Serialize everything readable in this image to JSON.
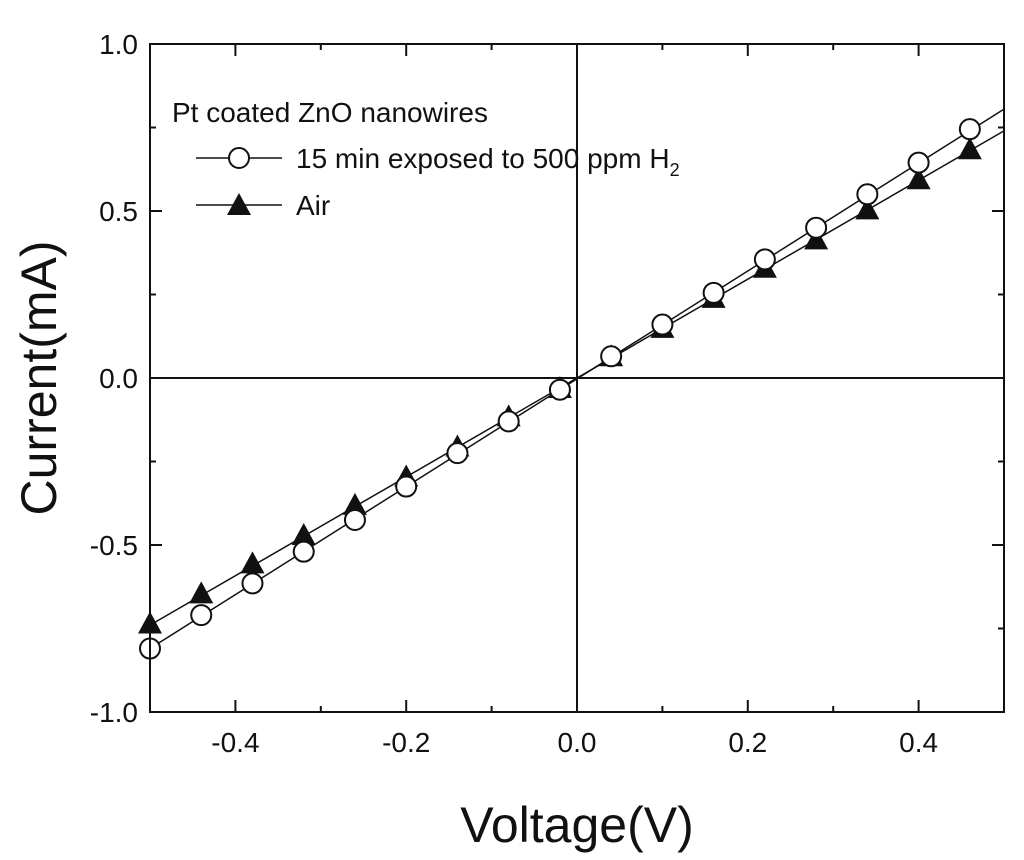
{
  "chart_data": {
    "type": "line",
    "title": "",
    "xlabel": "Voltage(V)",
    "ylabel": "Current(mA)",
    "xlim": [
      -0.5,
      0.5
    ],
    "ylim": [
      -1.0,
      1.0
    ],
    "xticks": [
      -0.4,
      -0.2,
      0.0,
      0.2,
      0.4
    ],
    "xtick_labels": [
      "-0.4",
      "-0.2",
      "0.0",
      "0.2",
      "0.4"
    ],
    "yticks": [
      -1.0,
      -0.5,
      0.0,
      0.5,
      1.0
    ],
    "ytick_labels": [
      "-1.0",
      "-0.5",
      "0.0",
      "0.5",
      "1.0"
    ],
    "grid": false,
    "legend_position": "top-left",
    "legend_title": "Pt coated ZnO nanowires",
    "series": [
      {
        "name": "15 min exposed to 500 ppm H",
        "name_subscript": "2",
        "marker": "open-circle",
        "x": [
          -0.5,
          -0.44,
          -0.38,
          -0.32,
          -0.26,
          -0.2,
          -0.14,
          -0.08,
          -0.02,
          0.04,
          0.1,
          0.16,
          0.22,
          0.28,
          0.34,
          0.4,
          0.46
        ],
        "y": [
          -0.81,
          -0.71,
          -0.615,
          -0.52,
          -0.425,
          -0.325,
          -0.225,
          -0.13,
          -0.035,
          0.065,
          0.16,
          0.255,
          0.355,
          0.45,
          0.55,
          0.645,
          0.745
        ],
        "fit_line": [
          [
            -0.5,
            -0.81
          ],
          [
            0.5,
            0.805
          ]
        ]
      },
      {
        "name": "Air",
        "marker": "filled-triangle",
        "x": [
          -0.5,
          -0.44,
          -0.38,
          -0.32,
          -0.26,
          -0.2,
          -0.14,
          -0.08,
          -0.02,
          0.04,
          0.1,
          0.16,
          0.22,
          0.28,
          0.34,
          0.4,
          0.46
        ],
        "y": [
          -0.735,
          -0.645,
          -0.555,
          -0.47,
          -0.38,
          -0.295,
          -0.205,
          -0.115,
          -0.03,
          0.065,
          0.15,
          0.24,
          0.33,
          0.415,
          0.505,
          0.595,
          0.685
        ],
        "fit_line": [
          [
            -0.5,
            -0.74
          ],
          [
            0.5,
            0.74
          ]
        ]
      }
    ]
  }
}
